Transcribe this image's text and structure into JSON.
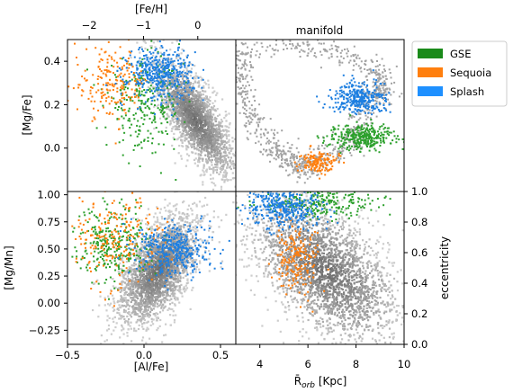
{
  "chart_data": [
    {
      "panel": "top-left",
      "type": "scatter",
      "xlabel_top": "[Fe/H]",
      "xticks_top": [
        -2,
        -1,
        0
      ],
      "xlim_top": [
        -2.4,
        0.7
      ],
      "ylabel": "[Mg/Fe]",
      "yticks": [
        0.0,
        0.2,
        0.4
      ],
      "ylim": [
        -0.2,
        0.5
      ],
      "background": "gray density",
      "series": [
        {
          "name": "GSE",
          "center": [
            -1.0,
            0.2
          ],
          "spread": [
            0.35,
            0.1
          ]
        },
        {
          "name": "Sequoia",
          "center": [
            -1.6,
            0.3
          ],
          "spread": [
            0.35,
            0.08
          ]
        },
        {
          "name": "Splash",
          "center": [
            -0.7,
            0.35
          ],
          "spread": [
            0.3,
            0.06
          ]
        }
      ]
    },
    {
      "panel": "top-right",
      "type": "scatter",
      "title": "manifold",
      "background": "gray outline",
      "series": [
        {
          "name": "GSE",
          "location": "lower right"
        },
        {
          "name": "Sequoia",
          "location": "lower middle"
        },
        {
          "name": "Splash",
          "location": "upper right"
        }
      ]
    },
    {
      "panel": "bottom-left",
      "type": "scatter",
      "xlabel": "[Al/Fe]",
      "xticks": [
        -0.5,
        0.0,
        0.5
      ],
      "xlim": [
        -0.5,
        0.6
      ],
      "ylabel": "[Mg/Mn]",
      "yticks": [
        -0.25,
        0.0,
        0.25,
        0.5,
        0.75,
        1.0
      ],
      "ylim": [
        -0.38,
        1.03
      ],
      "background": "gray density",
      "series": [
        {
          "name": "GSE",
          "center": [
            -0.2,
            0.55
          ],
          "spread": [
            0.12,
            0.18
          ]
        },
        {
          "name": "Sequoia",
          "center": [
            -0.2,
            0.6
          ],
          "spread": [
            0.15,
            0.2
          ]
        },
        {
          "name": "Splash",
          "center": [
            0.2,
            0.5
          ],
          "spread": [
            0.12,
            0.12
          ]
        }
      ]
    },
    {
      "panel": "bottom-right",
      "type": "scatter",
      "xlabel": "R̄_orb [Kpc]",
      "xlabel_main": "R̄",
      "xlabel_sub": "orb",
      "xlabel_unit": " [Kpc]",
      "xticks": [
        4,
        6,
        8,
        10
      ],
      "xlim": [
        3,
        10
      ],
      "ylabel": "eccentricity",
      "yticks": [
        0.0,
        0.2,
        0.4,
        0.6,
        0.8,
        1.0
      ],
      "ylim": [
        0.0,
        1.0
      ],
      "background": "gray density",
      "series": [
        {
          "name": "GSE",
          "center": [
            6.5,
            0.93
          ],
          "spread": [
            1.2,
            0.05
          ]
        },
        {
          "name": "Sequoia",
          "center": [
            5.5,
            0.58
          ],
          "spread": [
            0.5,
            0.12
          ]
        },
        {
          "name": "Splash",
          "center": [
            5.0,
            0.9
          ],
          "spread": [
            0.8,
            0.07
          ]
        }
      ]
    }
  ],
  "legend": {
    "placement": "right of top-right panel",
    "entries": [
      {
        "label": "GSE",
        "color": "#1a8a1a"
      },
      {
        "label": "Sequoia",
        "color": "#ff7f0e"
      },
      {
        "label": "Splash",
        "color": "#1e90ff"
      }
    ]
  },
  "colors": {
    "GSE": "#2ca02c",
    "Sequoia": "#ff7f0e",
    "Splash": "#1e7fe0",
    "background": "#8c8c8c"
  }
}
